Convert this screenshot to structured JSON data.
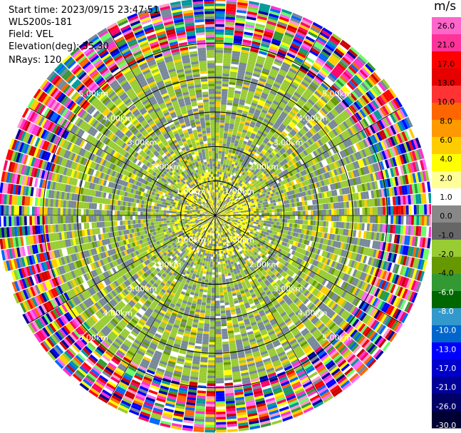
{
  "info": {
    "start_time": "Start time: 2023/09/15 23:47:51",
    "station": "WLS200s-181",
    "field": "Field: VEL",
    "elevation": "Elevation(deg): 35.30",
    "nrays": "NRays: 120"
  },
  "colorbar": {
    "unit": "m/s",
    "ticks": [
      "26.0",
      "21.0",
      "17.0",
      "13.0",
      "10.0",
      "8.0",
      "6.0",
      "4.0",
      "2.0",
      "1.0",
      "0.0",
      "-1.0",
      "-2.0",
      "-4.0",
      "-6.0",
      "-8.0",
      "-10.0",
      "-13.0",
      "-17.0",
      "-21.0",
      "-26.0",
      "-30.0"
    ],
    "colors": [
      "#ff66cc",
      "#ff3399",
      "#ff0000",
      "#e60000",
      "#ff3333",
      "#ff6600",
      "#ff9900",
      "#ffcc00",
      "#ffff00",
      "#ffff99",
      "#ffffff",
      "#888888",
      "#666666",
      "#99cc33",
      "#669900",
      "#339933",
      "#006600",
      "#3399cc",
      "#0066cc",
      "#0000ff",
      "#0000cc",
      "#000099",
      "#000066",
      "#000033"
    ]
  },
  "chart_data": {
    "type": "heatmap",
    "title": "",
    "nrays": 120,
    "range_rings_km": [
      1.0,
      2.0,
      3.0,
      4.0,
      5.0
    ],
    "range_labels": [
      "1.00km",
      "2.00km",
      "3.00km",
      "4.00km",
      "5.00km"
    ],
    "value_range": [
      -30.0,
      26.0
    ],
    "unit": "m/s"
  }
}
